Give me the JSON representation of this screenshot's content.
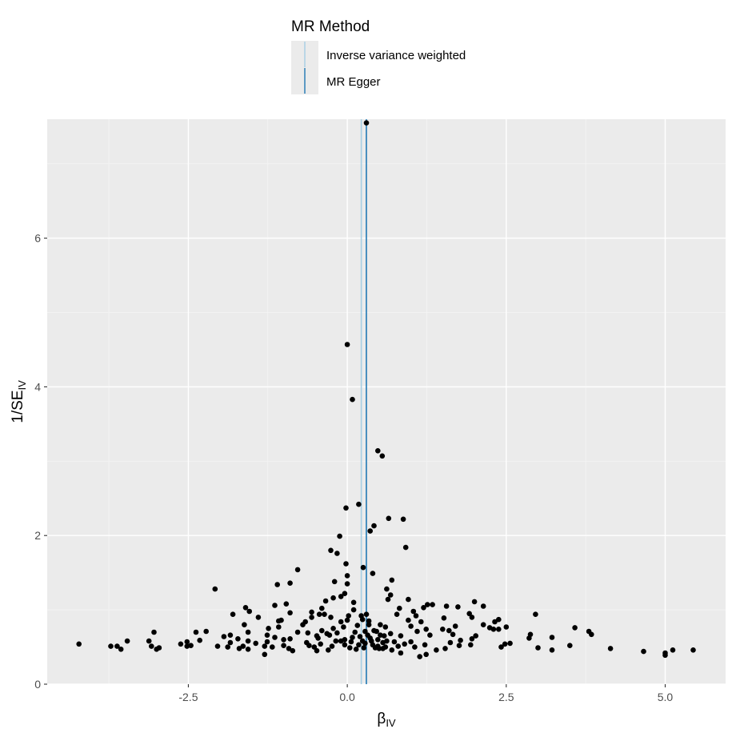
{
  "chart_data": {
    "type": "scatter",
    "xlabel_main": "β",
    "xlabel_sub": "IV",
    "ylabel_main": "1/SE",
    "ylabel_sub": "IV",
    "xlim": [
      -4.72,
      5.95
    ],
    "ylim": [
      0,
      7.6
    ],
    "x_ticks": [
      -2.5,
      0.0,
      2.5,
      5.0
    ],
    "x_tick_labels": [
      "-2.5",
      "0.0",
      "2.5",
      "5.0"
    ],
    "y_ticks": [
      0,
      2,
      4,
      6
    ],
    "y_tick_labels": [
      "0",
      "2",
      "4",
      "6"
    ],
    "grid": true,
    "legend": {
      "title": "MR Method",
      "position": "top",
      "entries": [
        {
          "label": "Inverse variance weighted",
          "color": "#a6cee3"
        },
        {
          "label": "MR Egger",
          "color": "#1f78b4"
        }
      ]
    },
    "vlines": [
      {
        "method": "Inverse variance weighted",
        "x": 0.22,
        "color": "#a6cee3"
      },
      {
        "method": "MR Egger",
        "x": 0.3,
        "color": "#1f78b4"
      }
    ],
    "points": [
      [
        0.3,
        7.55
      ],
      [
        0.0,
        4.57
      ],
      [
        0.08,
        3.83
      ],
      [
        0.48,
        3.14
      ],
      [
        0.55,
        3.07
      ],
      [
        0.18,
        2.42
      ],
      [
        -0.02,
        2.37
      ],
      [
        0.65,
        2.23
      ],
      [
        0.88,
        2.22
      ],
      [
        0.42,
        2.13
      ],
      [
        0.36,
        2.06
      ],
      [
        -0.12,
        1.99
      ],
      [
        0.92,
        1.84
      ],
      [
        -0.26,
        1.8
      ],
      [
        -0.16,
        1.76
      ],
      [
        -0.02,
        1.62
      ],
      [
        0.25,
        1.57
      ],
      [
        -0.78,
        1.54
      ],
      [
        0.4,
        1.49
      ],
      [
        0.0,
        1.46
      ],
      [
        0.7,
        1.4
      ],
      [
        -0.2,
        1.38
      ],
      [
        -0.9,
        1.36
      ],
      [
        -1.1,
        1.34
      ],
      [
        0.0,
        1.35
      ],
      [
        0.62,
        1.28
      ],
      [
        -2.08,
        1.28
      ],
      [
        0.68,
        1.2
      ],
      [
        -0.04,
        1.22
      ],
      [
        -0.1,
        1.18
      ],
      [
        0.64,
        1.14
      ],
      [
        0.96,
        1.14
      ],
      [
        -0.22,
        1.16
      ],
      [
        0.1,
        1.1
      ],
      [
        -0.34,
        1.12
      ],
      [
        2.0,
        1.11
      ],
      [
        1.26,
        1.07
      ],
      [
        1.34,
        1.07
      ],
      [
        1.56,
        1.05
      ],
      [
        -0.96,
        1.08
      ],
      [
        -1.14,
        1.06
      ],
      [
        1.74,
        1.04
      ],
      [
        0.82,
        1.02
      ],
      [
        1.2,
        1.03
      ],
      [
        -1.6,
        1.03
      ],
      [
        -0.4,
        1.02
      ],
      [
        2.14,
        1.05
      ],
      [
        1.04,
        0.98
      ],
      [
        0.1,
        1.0
      ],
      [
        -1.54,
        0.98
      ],
      [
        -0.56,
        0.97
      ],
      [
        -0.9,
        0.96
      ],
      [
        -0.36,
        0.94
      ],
      [
        -0.44,
        0.94
      ],
      [
        1.92,
        0.95
      ],
      [
        2.96,
        0.94
      ],
      [
        0.3,
        0.94
      ],
      [
        0.78,
        0.94
      ],
      [
        -1.8,
        0.94
      ],
      [
        0.22,
        0.92
      ],
      [
        1.08,
        0.92
      ],
      [
        0.02,
        0.92
      ],
      [
        -1.4,
        0.9
      ],
      [
        -0.56,
        0.9
      ],
      [
        -0.26,
        0.9
      ],
      [
        1.52,
        0.89
      ],
      [
        1.96,
        0.9
      ],
      [
        0.24,
        0.87
      ],
      [
        2.38,
        0.87
      ],
      [
        -1.04,
        0.86
      ],
      [
        0.96,
        0.86
      ],
      [
        0.34,
        0.85
      ],
      [
        0.0,
        0.86
      ],
      [
        -1.08,
        0.85
      ],
      [
        1.16,
        0.84
      ],
      [
        -0.66,
        0.84
      ],
      [
        -0.1,
        0.84
      ],
      [
        2.32,
        0.84
      ],
      [
        0.34,
        0.8
      ],
      [
        0.52,
        0.8
      ],
      [
        -0.7,
        0.8
      ],
      [
        -1.62,
        0.8
      ],
      [
        2.14,
        0.8
      ],
      [
        1.7,
        0.78
      ],
      [
        1.0,
        0.78
      ],
      [
        0.6,
        0.77
      ],
      [
        2.24,
        0.76
      ],
      [
        2.5,
        0.77
      ],
      [
        -0.06,
        0.77
      ],
      [
        -1.08,
        0.77
      ],
      [
        3.58,
        0.76
      ],
      [
        -1.24,
        0.75
      ],
      [
        1.5,
        0.74
      ],
      [
        1.24,
        0.74
      ],
      [
        2.3,
        0.74
      ],
      [
        2.38,
        0.74
      ],
      [
        0.42,
        0.72
      ],
      [
        3.8,
        0.71
      ],
      [
        -2.22,
        0.71
      ],
      [
        -0.4,
        0.72
      ],
      [
        -3.04,
        0.7
      ],
      [
        -2.38,
        0.7
      ],
      [
        1.6,
        0.72
      ],
      [
        0.28,
        0.71
      ],
      [
        1.1,
        0.71
      ],
      [
        -0.78,
        0.7
      ],
      [
        0.12,
        0.7
      ],
      [
        -0.62,
        0.69
      ],
      [
        -1.56,
        0.7
      ],
      [
        -0.16,
        0.69
      ],
      [
        0.68,
        0.68
      ],
      [
        1.66,
        0.67
      ],
      [
        2.88,
        0.67
      ],
      [
        3.84,
        0.67
      ],
      [
        -1.84,
        0.66
      ],
      [
        -0.28,
        0.66
      ],
      [
        -1.26,
        0.66
      ],
      [
        0.58,
        0.65
      ],
      [
        0.84,
        0.65
      ],
      [
        -0.48,
        0.65
      ],
      [
        1.3,
        0.66
      ],
      [
        2.02,
        0.65
      ],
      [
        -1.94,
        0.64
      ],
      [
        -1.14,
        0.63
      ],
      [
        0.2,
        0.64
      ],
      [
        2.86,
        0.62
      ],
      [
        -0.46,
        0.62
      ],
      [
        0.36,
        0.62
      ],
      [
        -1.72,
        0.61
      ],
      [
        -0.9,
        0.61
      ],
      [
        1.96,
        0.61
      ],
      [
        0.48,
        0.6
      ],
      [
        -0.04,
        0.6
      ],
      [
        -1.0,
        0.6
      ],
      [
        1.78,
        0.59
      ],
      [
        -2.32,
        0.59
      ],
      [
        3.22,
        0.63
      ],
      [
        -1.56,
        0.58
      ],
      [
        -0.1,
        0.58
      ],
      [
        0.62,
        0.58
      ],
      [
        -0.18,
        0.58
      ],
      [
        0.24,
        0.58
      ],
      [
        -3.46,
        0.58
      ],
      [
        -3.12,
        0.58
      ],
      [
        -1.26,
        0.57
      ],
      [
        -2.52,
        0.57
      ],
      [
        1.0,
        0.57
      ],
      [
        -1.84,
        0.56
      ],
      [
        0.56,
        0.56
      ],
      [
        -0.64,
        0.56
      ],
      [
        1.62,
        0.56
      ],
      [
        2.56,
        0.55
      ],
      [
        -1.44,
        0.55
      ],
      [
        2.48,
        0.54
      ],
      [
        -2.62,
        0.54
      ],
      [
        -0.42,
        0.54
      ],
      [
        0.9,
        0.54
      ],
      [
        -0.04,
        0.53
      ],
      [
        1.22,
        0.53
      ],
      [
        0.4,
        0.53
      ],
      [
        -4.22,
        0.54
      ],
      [
        1.94,
        0.53
      ],
      [
        -2.46,
        0.52
      ],
      [
        -1.0,
        0.52
      ],
      [
        1.76,
        0.52
      ],
      [
        -0.6,
        0.52
      ],
      [
        3.5,
        0.52
      ],
      [
        -1.64,
        0.51
      ],
      [
        0.48,
        0.51
      ],
      [
        -2.04,
        0.51
      ],
      [
        -3.08,
        0.51
      ],
      [
        -1.3,
        0.51
      ],
      [
        -0.24,
        0.51
      ],
      [
        -3.62,
        0.51
      ],
      [
        -3.72,
        0.51
      ],
      [
        -2.52,
        0.51
      ],
      [
        0.8,
        0.51
      ],
      [
        1.06,
        0.5
      ],
      [
        -0.52,
        0.5
      ],
      [
        0.6,
        0.5
      ],
      [
        -1.88,
        0.5
      ],
      [
        2.42,
        0.5
      ],
      [
        -1.18,
        0.5
      ],
      [
        0.04,
        0.49
      ],
      [
        0.44,
        0.49
      ],
      [
        -2.96,
        0.49
      ],
      [
        0.26,
        0.49
      ],
      [
        -1.7,
        0.48
      ],
      [
        1.54,
        0.48
      ],
      [
        3.0,
        0.49
      ],
      [
        -0.92,
        0.48
      ],
      [
        0.56,
        0.48
      ],
      [
        4.14,
        0.48
      ],
      [
        -3.0,
        0.47
      ],
      [
        -3.56,
        0.47
      ],
      [
        -1.56,
        0.47
      ],
      [
        0.14,
        0.47
      ],
      [
        3.22,
        0.46
      ],
      [
        0.7,
        0.46
      ],
      [
        -0.3,
        0.46
      ],
      [
        5.44,
        0.46
      ],
      [
        5.12,
        0.46
      ],
      [
        1.4,
        0.46
      ],
      [
        -0.48,
        0.45
      ],
      [
        -0.86,
        0.45
      ],
      [
        4.66,
        0.44
      ],
      [
        5.0,
        0.42
      ],
      [
        0.84,
        0.42
      ],
      [
        5.0,
        0.39
      ],
      [
        -1.3,
        0.4
      ],
      [
        1.24,
        0.4
      ],
      [
        1.14,
        0.37
      ],
      [
        0.38,
        0.58
      ],
      [
        0.52,
        0.66
      ],
      [
        0.28,
        0.55
      ],
      [
        -0.22,
        0.75
      ],
      [
        0.08,
        0.63
      ],
      [
        0.16,
        0.79
      ],
      [
        0.46,
        0.71
      ],
      [
        0.74,
        0.57
      ],
      [
        -0.32,
        0.68
      ],
      [
        0.18,
        0.53
      ],
      [
        0.32,
        0.66
      ],
      [
        0.06,
        0.57
      ],
      [
        0.5,
        0.48
      ]
    ]
  }
}
